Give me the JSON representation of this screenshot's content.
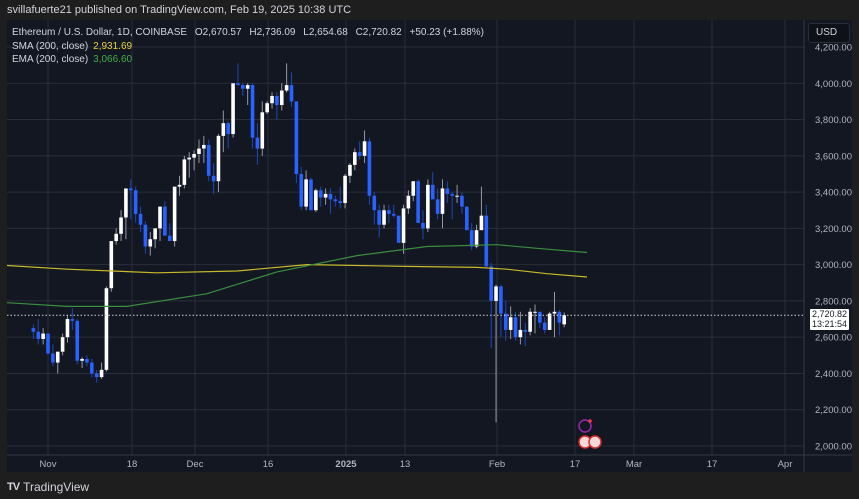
{
  "header": {
    "published": "svillafuerte21 published on TradingView.com, Feb 19, 2025 10:38 UTC"
  },
  "legend": {
    "symbol": "Ethereum / U.S. Dollar, 1D, COINBASE",
    "open": "O2,670.57",
    "high": "H2,736.09",
    "low": "L2,654.68",
    "close": "C2,720.82",
    "change": "+50.23 (+1.88%)",
    "sma_label": "SMA (200, close)",
    "sma_value": "2,931.69",
    "ema_label": "EMA (200, close)",
    "ema_value": "3,066.60"
  },
  "axis": {
    "currency": "USD",
    "last_price": "2,720.82",
    "countdown": "13:21:54"
  },
  "footer": {
    "brand": "TradingView",
    "logo": "TV"
  },
  "colors": {
    "up": "#ffffff",
    "down": "#2962ff",
    "sma": "#c9b92a",
    "ema": "#3a8f3f",
    "grid": "#2a2e39",
    "background": "#131722"
  },
  "chart_data": {
    "type": "candlestick",
    "title": "Ethereum / U.S. Dollar, 1D, COINBASE",
    "ylabel": "USD",
    "ylim": [
      1950,
      4300
    ],
    "y_ticks": [
      2000,
      2200,
      2400,
      2600,
      2800,
      3000,
      3200,
      3400,
      3600,
      3800,
      4000,
      4200
    ],
    "x_ticks": [
      {
        "label": "Nov",
        "x": 48
      },
      {
        "label": "18",
        "x": 132
      },
      {
        "label": "Dec",
        "x": 195
      },
      {
        "label": "16",
        "x": 268
      },
      {
        "label": "2025",
        "x": 346,
        "bold": true
      },
      {
        "label": "13",
        "x": 405
      },
      {
        "label": "Feb",
        "x": 497
      },
      {
        "label": "17",
        "x": 575
      },
      {
        "label": "Mar",
        "x": 634
      },
      {
        "label": "17",
        "x": 712
      },
      {
        "label": "Apr",
        "x": 785
      }
    ],
    "grid": true,
    "last_price": 2720.82,
    "sma_200_last": 2931.69,
    "ema_200_last": 3066.6,
    "candles_note": "approximate daily OHLC read from chart, Oct 29 2024 - Feb 19 2025",
    "candles": [
      [
        2650,
        2670,
        2590,
        2630
      ],
      [
        2630,
        2700,
        2560,
        2590
      ],
      [
        2590,
        2650,
        2560,
        2620
      ],
      [
        2620,
        2620,
        2500,
        2510
      ],
      [
        2510,
        2560,
        2440,
        2460
      ],
      [
        2460,
        2500,
        2400,
        2520
      ],
      [
        2520,
        2620,
        2500,
        2600
      ],
      [
        2600,
        2720,
        2570,
        2700
      ],
      [
        2700,
        2760,
        2640,
        2690
      ],
      [
        2690,
        2700,
        2450,
        2470
      ],
      [
        2470,
        2490,
        2430,
        2480
      ],
      [
        2480,
        2500,
        2440,
        2460
      ],
      [
        2460,
        2480,
        2380,
        2400
      ],
      [
        2400,
        2420,
        2350,
        2380
      ],
      [
        2380,
        2460,
        2370,
        2420
      ],
      [
        2420,
        2880,
        2410,
        2870
      ],
      [
        2870,
        3050,
        2850,
        3130
      ],
      [
        3130,
        3200,
        3110,
        3170
      ],
      [
        3170,
        3300,
        3130,
        3260
      ],
      [
        3260,
        3380,
        3140,
        3420
      ],
      [
        3420,
        3470,
        3250,
        3410
      ],
      [
        3410,
        3430,
        3230,
        3280
      ],
      [
        3280,
        3320,
        3180,
        3220
      ],
      [
        3220,
        3240,
        3060,
        3100
      ],
      [
        3100,
        3180,
        3050,
        3140
      ],
      [
        3140,
        3200,
        3090,
        3200
      ],
      [
        3200,
        3270,
        3130,
        3320
      ],
      [
        3320,
        3350,
        3160,
        3160
      ],
      [
        3160,
        3230,
        3140,
        3130
      ],
      [
        3130,
        3270,
        3100,
        3430
      ],
      [
        3430,
        3490,
        3380,
        3440
      ],
      [
        3440,
        3600,
        3420,
        3580
      ],
      [
        3580,
        3620,
        3480,
        3590
      ],
      [
        3590,
        3630,
        3520,
        3610
      ],
      [
        3610,
        3690,
        3560,
        3640
      ],
      [
        3640,
        3710,
        3560,
        3660
      ],
      [
        3660,
        3690,
        3460,
        3490
      ],
      [
        3490,
        3560,
        3390,
        3460
      ],
      [
        3460,
        3720,
        3400,
        3710
      ],
      [
        3710,
        3850,
        3620,
        3780
      ],
      [
        3780,
        3790,
        3640,
        3720
      ],
      [
        3720,
        3980,
        3700,
        4000
      ],
      [
        4000,
        4110,
        3990,
        3990
      ],
      [
        3990,
        4000,
        3930,
        3970
      ],
      [
        3970,
        4000,
        3880,
        3990
      ],
      [
        3990,
        4000,
        3640,
        3700
      ],
      [
        3700,
        3780,
        3550,
        3640
      ],
      [
        3640,
        3900,
        3600,
        3840
      ],
      [
        3840,
        3900,
        3830,
        3890
      ],
      [
        3890,
        3950,
        3860,
        3930
      ],
      [
        3930,
        3950,
        3800,
        3880
      ],
      [
        3880,
        4000,
        3850,
        3960
      ],
      [
        3960,
        4110,
        3950,
        3990
      ],
      [
        3990,
        4060,
        3870,
        3900
      ],
      [
        3900,
        3900,
        3450,
        3500
      ],
      [
        3500,
        3540,
        3300,
        3320
      ],
      [
        3320,
        3520,
        3300,
        3470
      ],
      [
        3470,
        3480,
        3300,
        3300
      ],
      [
        3300,
        3420,
        3290,
        3410
      ],
      [
        3410,
        3430,
        3320,
        3370
      ],
      [
        3370,
        3420,
        3330,
        3390
      ],
      [
        3390,
        3420,
        3280,
        3360
      ],
      [
        3360,
        3380,
        3320,
        3350
      ],
      [
        3350,
        3430,
        3310,
        3340
      ],
      [
        3340,
        3500,
        3310,
        3490
      ],
      [
        3490,
        3560,
        3450,
        3550
      ],
      [
        3550,
        3640,
        3520,
        3620
      ],
      [
        3620,
        3680,
        3580,
        3600
      ],
      [
        3600,
        3740,
        3560,
        3680
      ],
      [
        3680,
        3700,
        3330,
        3380
      ],
      [
        3380,
        3400,
        3220,
        3300
      ],
      [
        3300,
        3330,
        3150,
        3220
      ],
      [
        3220,
        3330,
        3200,
        3300
      ],
      [
        3300,
        3330,
        3230,
        3280
      ],
      [
        3280,
        3330,
        3260,
        3270
      ],
      [
        3270,
        3260,
        3160,
        3120
      ],
      [
        3120,
        3330,
        3060,
        3310
      ],
      [
        3310,
        3410,
        3280,
        3380
      ],
      [
        3380,
        3450,
        3350,
        3460
      ],
      [
        3460,
        3470,
        3230,
        3230
      ],
      [
        3230,
        3300,
        3140,
        3200
      ],
      [
        3200,
        3470,
        3180,
        3440
      ],
      [
        3440,
        3510,
        3360,
        3360
      ],
      [
        3360,
        3420,
        3250,
        3280
      ],
      [
        3280,
        3470,
        3200,
        3420
      ],
      [
        3420,
        3460,
        3340,
        3390
      ],
      [
        3390,
        3400,
        3250,
        3380
      ],
      [
        3380,
        3440,
        3340,
        3380
      ],
      [
        3380,
        3400,
        3280,
        3320
      ],
      [
        3320,
        3310,
        3200,
        3190
      ],
      [
        3190,
        3230,
        3080,
        3100
      ],
      [
        3100,
        3220,
        3090,
        3190
      ],
      [
        3190,
        3430,
        3200,
        3270
      ],
      [
        3270,
        3330,
        3000,
        2990
      ],
      [
        2990,
        3010,
        2540,
        2800
      ],
      [
        2800,
        2890,
        2130,
        2880
      ],
      [
        2880,
        2890,
        2600,
        2730
      ],
      [
        2730,
        2800,
        2580,
        2640
      ],
      [
        2640,
        2770,
        2590,
        2710
      ],
      [
        2710,
        2740,
        2580,
        2600
      ],
      [
        2600,
        2740,
        2560,
        2640
      ],
      [
        2640,
        2680,
        2550,
        2630
      ],
      [
        2630,
        2760,
        2610,
        2740
      ],
      [
        2740,
        2780,
        2620,
        2740
      ],
      [
        2740,
        2730,
        2650,
        2680
      ],
      [
        2680,
        2710,
        2620,
        2640
      ],
      [
        2640,
        2740,
        2640,
        2730
      ],
      [
        2730,
        2850,
        2600,
        2740
      ],
      [
        2740,
        2750,
        2610,
        2680
      ],
      [
        2670.57,
        2736.09,
        2654.68,
        2720.82
      ]
    ]
  }
}
